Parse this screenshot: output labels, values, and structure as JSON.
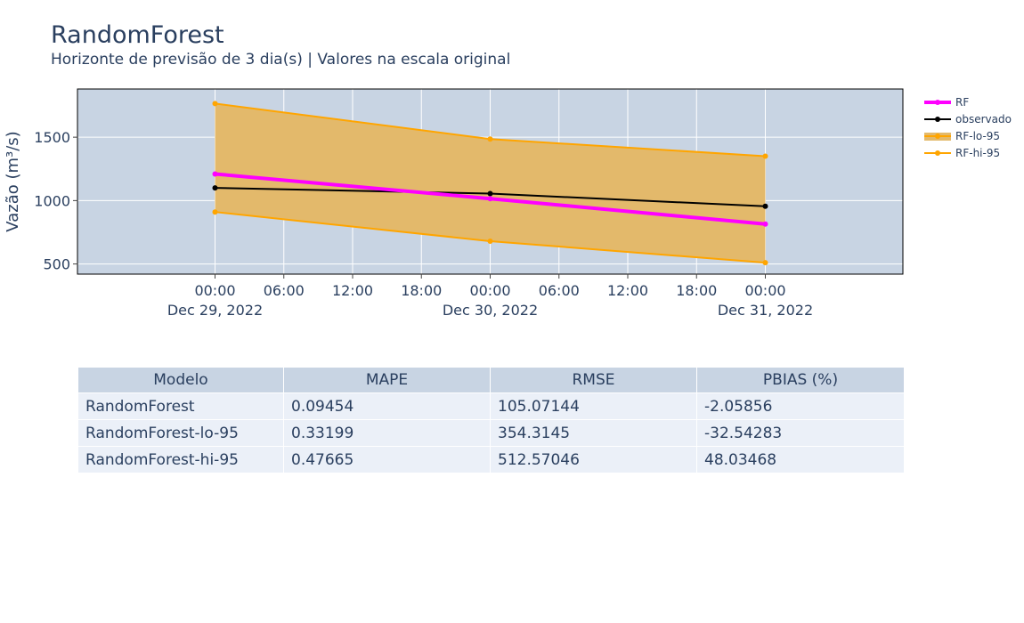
{
  "title": "RandomForest",
  "subtitle": "Horizonte de previsão de 3 dia(s) | Valores na escala original",
  "chart_data": {
    "type": "line",
    "ylabel": "Vazão (m³/s)",
    "x": [
      "2022-12-29 00:00",
      "2022-12-30 00:00",
      "2022-12-31 00:00"
    ],
    "xlim": [
      "2022-12-28 12:00",
      "2022-12-31 12:00"
    ],
    "ylim": [
      420,
      1880
    ],
    "yticks": [
      500,
      1000,
      1500
    ],
    "ytick_labels": [
      "500",
      "1000",
      "1500"
    ],
    "xticks": [
      {
        "time": "2022-12-29 00:00",
        "label": "00:00",
        "date_label": "Dec 29, 2022"
      },
      {
        "time": "2022-12-29 06:00",
        "label": "06:00",
        "date_label": ""
      },
      {
        "time": "2022-12-29 12:00",
        "label": "12:00",
        "date_label": ""
      },
      {
        "time": "2022-12-29 18:00",
        "label": "18:00",
        "date_label": ""
      },
      {
        "time": "2022-12-30 00:00",
        "label": "00:00",
        "date_label": "Dec 30, 2022"
      },
      {
        "time": "2022-12-30 06:00",
        "label": "06:00",
        "date_label": ""
      },
      {
        "time": "2022-12-30 12:00",
        "label": "12:00",
        "date_label": ""
      },
      {
        "time": "2022-12-30 18:00",
        "label": "18:00",
        "date_label": ""
      },
      {
        "time": "2022-12-31 00:00",
        "label": "00:00",
        "date_label": "Dec 31, 2022"
      }
    ],
    "grid": true,
    "legend_position": "top-right",
    "series": [
      {
        "name": "RF",
        "values": [
          1210,
          1015,
          815
        ],
        "color": "#ff00ff"
      },
      {
        "name": "observado",
        "values": [
          1100,
          1055,
          955
        ],
        "color": "#000000"
      },
      {
        "name": "RF-lo-95",
        "values": [
          910,
          680,
          510
        ],
        "color": "#ffa500"
      },
      {
        "name": "RF-hi-95",
        "values": [
          1765,
          1485,
          1350
        ],
        "color": "#ffa500"
      }
    ],
    "band_fill": "#e3b96b",
    "plot_bg": "#c8d4e3"
  },
  "table": {
    "headers": [
      "Modelo",
      "MAPE",
      "RMSE",
      "PBIAS (%)"
    ],
    "rows": [
      [
        "RandomForest",
        "0.09454",
        "105.07144",
        "-2.05856"
      ],
      [
        "RandomForest-lo-95",
        "0.33199",
        "354.3145",
        "-32.54283"
      ],
      [
        "RandomForest-hi-95",
        "0.47665",
        "512.57046",
        "48.03468"
      ]
    ]
  }
}
